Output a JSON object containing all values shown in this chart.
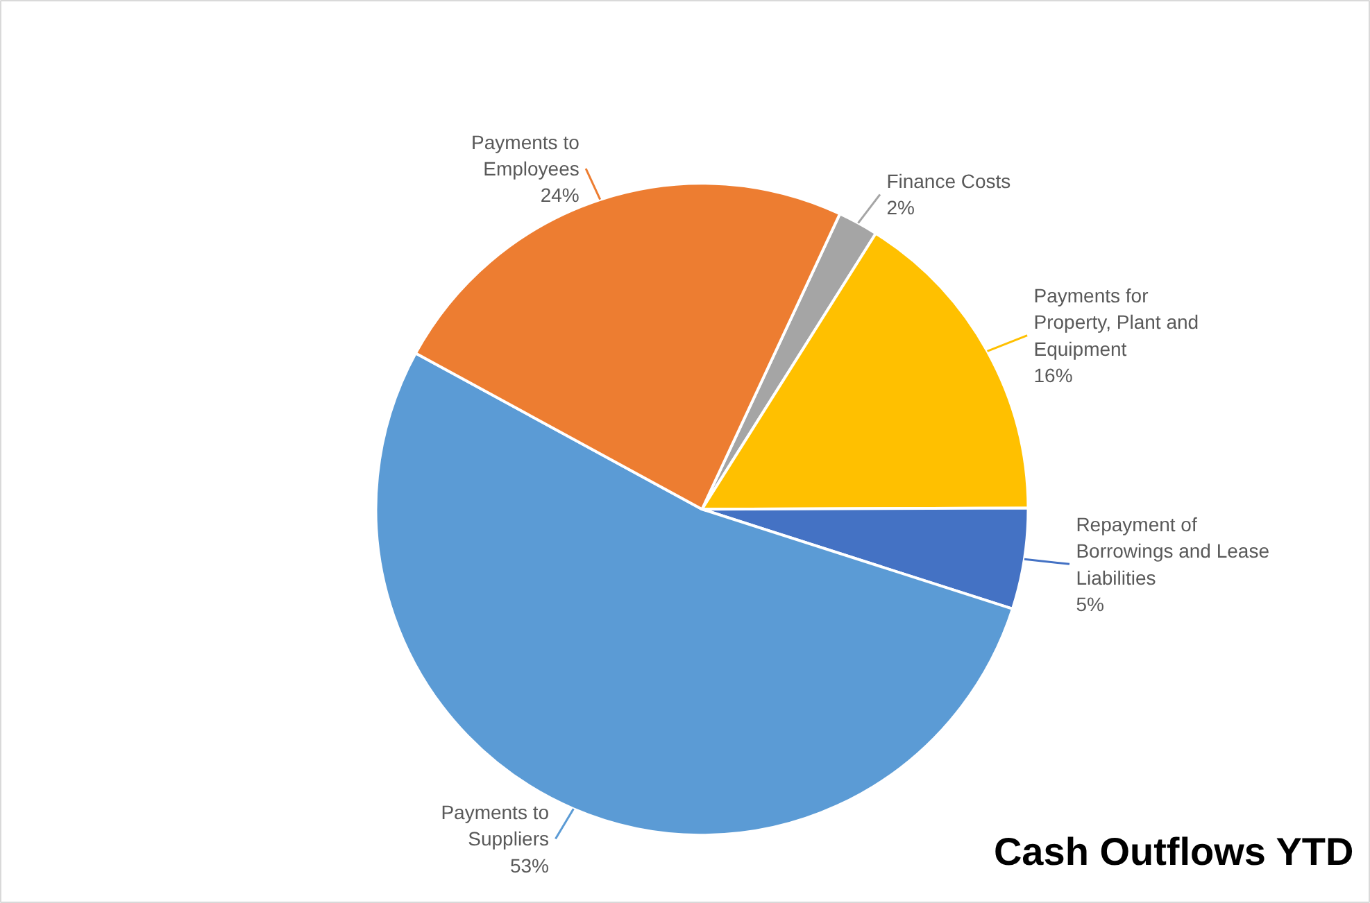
{
  "chart_data": {
    "type": "pie",
    "title": "Cash Outflows YTD",
    "categories": [
      "Finance Costs",
      "Payments for Property, Plant and Equipment",
      "Repayment of Borrowings and Lease Liabilities",
      "Payments to Suppliers",
      "Payments to Employees"
    ],
    "values": [
      2,
      16,
      5,
      53,
      24
    ],
    "value_labels": [
      "2%",
      "16%",
      "5%",
      "53%",
      "24%"
    ],
    "colors": [
      "#a5a5a5",
      "#ffc000",
      "#4472c4",
      "#5b9bd5",
      "#ed7d31"
    ]
  }
}
